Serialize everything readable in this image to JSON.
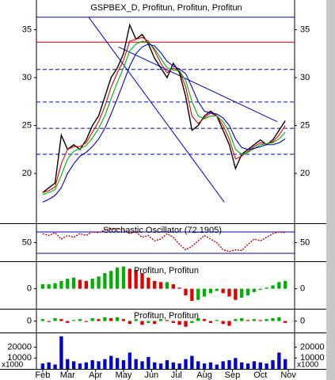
{
  "chart_data": [
    {
      "type": "line",
      "title": "GSPBEX_D, Profitun, Profitun, Profitun",
      "x": [
        0,
        1,
        2,
        3,
        4,
        5,
        6,
        7,
        8,
        9,
        10,
        11,
        12,
        13,
        14,
        15,
        16,
        17,
        18,
        19,
        20,
        21,
        22,
        23,
        24,
        25,
        26,
        27,
        28,
        29,
        30,
        31,
        32,
        33,
        34,
        35,
        36,
        37,
        38,
        39
      ],
      "xlim": [
        -1,
        40.5
      ],
      "xticks": [
        {
          "value": 0,
          "label": "Feb"
        },
        {
          "value": 4,
          "label": "Mar"
        },
        {
          "value": 8.5,
          "label": "Apr"
        },
        {
          "value": 13,
          "label": "May"
        },
        {
          "value": 17.5,
          "label": "Jun"
        },
        {
          "value": 21.5,
          "label": "Jul"
        },
        {
          "value": 26,
          "label": "Aug"
        },
        {
          "value": 30.5,
          "label": "Sep"
        },
        {
          "value": 35,
          "label": "Oct"
        },
        {
          "value": 39.5,
          "label": "Nov"
        }
      ],
      "ylim": [
        14.8,
        38.1
      ],
      "yticks": [
        20,
        25,
        30,
        35
      ],
      "series": [
        {
          "color": "#000000",
          "values": [
            18,
            18.5,
            19,
            24,
            22.5,
            23,
            22.5,
            23.5,
            25,
            26,
            28,
            30,
            31,
            32.5,
            35.5,
            34,
            34.5,
            33.5,
            32,
            31,
            30,
            31.5,
            30.5,
            28,
            24.5,
            25,
            26,
            26.5,
            26,
            24.5,
            23,
            20.5,
            22,
            22.5,
            23,
            23.5,
            23,
            23.5,
            24.5,
            25.5
          ]
        },
        {
          "color": "#e00000",
          "values": [
            18,
            18.2,
            18.6,
            21,
            22.5,
            22.8,
            22.8,
            23.2,
            24.3,
            25.4,
            27,
            29,
            30.5,
            31.8,
            33.8,
            34,
            34.2,
            33.8,
            32.8,
            31.5,
            30.5,
            31,
            30.7,
            29,
            26,
            25.2,
            25.8,
            26.3,
            26,
            25,
            23.6,
            21.5,
            21.8,
            22.3,
            22.8,
            23.2,
            23.1,
            23.3,
            24,
            25
          ]
        },
        {
          "color": "#00b000",
          "values": [
            17.8,
            18,
            18.3,
            19.8,
            21.5,
            22.3,
            22.6,
            22.9,
            23.7,
            24.7,
            26,
            27.8,
            29.5,
            31,
            32.8,
            33.5,
            33.8,
            33.7,
            33,
            32,
            31,
            30.8,
            30.7,
            29.7,
            27.5,
            26,
            25.7,
            26,
            26,
            25.4,
            24.3,
            22.5,
            22,
            22.2,
            22.6,
            23,
            23.1,
            23.2,
            23.6,
            24.3
          ]
        },
        {
          "color": "#0000cc",
          "values": [
            17,
            17.3,
            17.7,
            18.5,
            20,
            21,
            21.8,
            22.2,
            22.8,
            23.6,
            24.7,
            26.2,
            27.8,
            29.5,
            31.2,
            32.5,
            33.2,
            33.5,
            33.3,
            32.6,
            31.7,
            31.2,
            30.9,
            30.4,
            29,
            27.5,
            26.5,
            26.3,
            26.2,
            25.8,
            25,
            23.6,
            22.7,
            22.5,
            22.6,
            22.8,
            23,
            23,
            23.2,
            23.6
          ]
        }
      ],
      "hlines": [
        {
          "value": 36.3,
          "color": "#0000cc"
        },
        {
          "value": 33.7,
          "color": "#cc0000"
        },
        {
          "value": 30.85,
          "color": "#0000cc",
          "dash": true
        },
        {
          "value": 27.45,
          "color": "#0000cc",
          "dash": true
        },
        {
          "value": 24.7,
          "color": "#0000cc",
          "dash": true
        },
        {
          "value": 22,
          "color": "#0000cc",
          "dash": true
        }
      ],
      "trendlines": [
        {
          "x": [
            7.4,
            29.2
          ],
          "y": [
            36.3,
            17
          ],
          "color": "#0000cc"
        },
        {
          "x": [
            12.2,
            37.7
          ],
          "y": [
            33.2,
            25.4
          ],
          "color": "#0000cc"
        }
      ]
    },
    {
      "type": "line",
      "title": "Stochastic Oscillator (72.1905)",
      "ylim": [
        -2,
        102
      ],
      "yticks": [
        50
      ],
      "series": [
        {
          "color": "#c00000",
          "dash": true,
          "values": [
            75,
            70,
            78,
            60,
            70,
            65,
            75,
            70,
            80,
            78,
            85,
            88,
            90,
            85,
            75,
            80,
            65,
            70,
            55,
            60,
            75,
            65,
            45,
            30,
            40,
            55,
            70,
            60,
            50,
            30,
            25,
            30,
            28,
            45,
            60,
            55,
            65,
            75,
            80,
            78
          ]
        }
      ],
      "hlines": [
        {
          "value": 20,
          "color": "#0000cc"
        },
        {
          "value": 80,
          "color": "#0000cc"
        }
      ]
    },
    {
      "type": "bar",
      "title": "Profitun, Profitun",
      "ylim": [
        -0.9,
        1.2
      ],
      "yticks": [
        0
      ],
      "up_color": "#00b000",
      "down_color": "#e00000",
      "values": [
        0.2,
        0.2,
        0.25,
        0.35,
        0.45,
        0.5,
        0.4,
        0.35,
        0.45,
        0.55,
        0.7,
        0.8,
        0.95,
        1.0,
        0.9,
        0.85,
        0.7,
        0.5,
        0.35,
        0.3,
        0.3,
        0.2,
        0.05,
        -0.3,
        -0.55,
        -0.5,
        -0.35,
        -0.2,
        -0.1,
        -0.2,
        -0.35,
        -0.5,
        -0.4,
        -0.3,
        -0.15,
        -0.05,
        0.05,
        0.15,
        0.3,
        0.35
      ]
    },
    {
      "type": "bar",
      "title": "Profitun, Profitun",
      "ylim": [
        -0.6,
        0.6
      ],
      "yticks": [
        0
      ],
      "up_color": "#00b000",
      "down_color": "#e00000",
      "values": [
        0.1,
        -0.05,
        0.15,
        0.1,
        -0.1,
        0.05,
        0.1,
        -0.05,
        0.15,
        0.1,
        0.2,
        0.15,
        0.2,
        0.1,
        -0.15,
        0.1,
        -0.2,
        -0.1,
        -0.15,
        0.1,
        0.05,
        -0.1,
        -0.2,
        -0.3,
        -0.1,
        0.15,
        0.1,
        -0.1,
        0.05,
        -0.15,
        -0.25,
        0.1,
        0.15,
        0.05,
        0.1,
        0.05,
        0.1,
        0.15,
        0.2,
        -0.1
      ]
    },
    {
      "type": "bar",
      "unit_label": "x1000",
      "ylim": [
        0,
        32800
      ],
      "yticks": [
        10000,
        20000
      ],
      "color": "#0000cc",
      "values": [
        5000,
        6000,
        4000,
        30000,
        9000,
        7000,
        5000,
        6000,
        8000,
        7000,
        9000,
        12000,
        10000,
        8000,
        15000,
        9000,
        7000,
        11000,
        6000,
        5000,
        8000,
        6000,
        5000,
        9000,
        12000,
        7000,
        5000,
        6000,
        4000,
        7000,
        8000,
        10000,
        6000,
        5000,
        7000,
        6000,
        5000,
        8000,
        15000,
        9000
      ]
    }
  ]
}
